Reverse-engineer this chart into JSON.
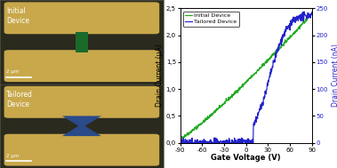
{
  "left_panel_bg": "#2a2a1e",
  "electrode_color": "#c8a84b",
  "initial_channel_color": "#1a6b2a",
  "tailored_channel_color": "#2a4a8a",
  "initial_label_line1": "Initial",
  "initial_label_line2": "Device",
  "tailored_label_line1": "Tailored",
  "tailored_label_line2": "Device",
  "scale_bar_text": "2 μm",
  "legend_labels": [
    "Initial Device",
    "Tailored Device"
  ],
  "initial_color": "#22aa22",
  "tailored_color": "#2222cc",
  "xlabel": "Gate Voltage (V)",
  "ylabel_left": "Drain Current (μA)",
  "ylabel_right": "Drain Current (nA)",
  "xlim": [
    -90,
    90
  ],
  "ylim_left": [
    0.0,
    2.5
  ],
  "ylim_right": [
    0,
    250
  ],
  "xticks": [
    -90,
    -60,
    -30,
    0,
    30,
    60,
    90
  ],
  "yticks_left": [
    0.0,
    0.5,
    1.0,
    1.5,
    2.0,
    2.5
  ],
  "yticks_right": [
    0,
    50,
    100,
    150,
    200,
    250
  ]
}
